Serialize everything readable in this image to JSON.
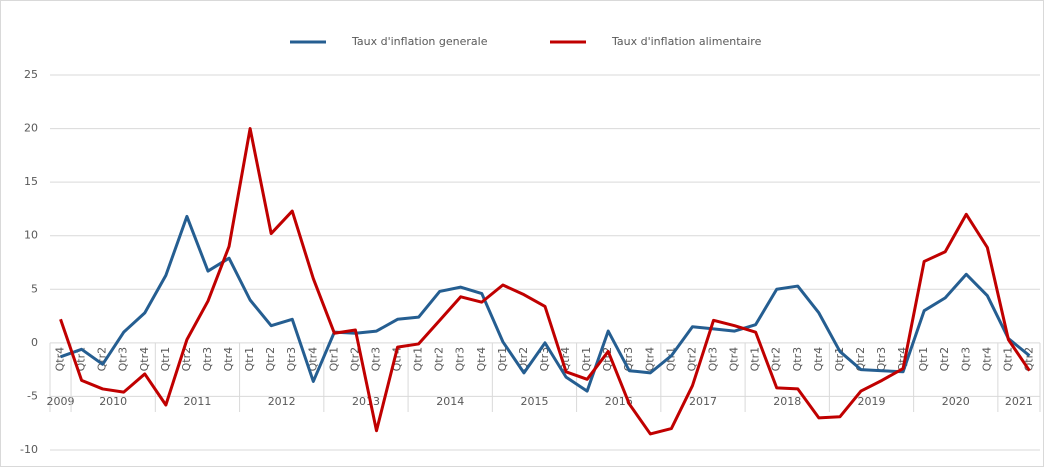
{
  "chart_data": {
    "type": "line",
    "category_groups": [
      {
        "name": "2009",
        "categories": [
          "Qtr4"
        ]
      },
      {
        "name": "2010",
        "categories": [
          "Qtr1",
          "Qtr2",
          "Qtr3",
          "Qtr4"
        ]
      },
      {
        "name": "2011",
        "categories": [
          "Qtr1",
          "Qtr2",
          "Qtr3",
          "Qtr4"
        ]
      },
      {
        "name": "2012",
        "categories": [
          "Qtr1",
          "Qtr2",
          "Qtr3",
          "Qtr4"
        ]
      },
      {
        "name": "2013",
        "categories": [
          "Qtr1",
          "Qtr2",
          "Qtr3",
          "Qtr4"
        ]
      },
      {
        "name": "2014",
        "categories": [
          "Qtr1",
          "Qtr2",
          "Qtr3",
          "Qtr4"
        ]
      },
      {
        "name": "2015",
        "categories": [
          "Qtr1",
          "Qtr2",
          "Qtr3",
          "Qtr4"
        ]
      },
      {
        "name": "2016",
        "categories": [
          "Qtr1",
          "Qtr2",
          "Qtr3",
          "Qtr4"
        ]
      },
      {
        "name": "2017",
        "categories": [
          "Qtr1",
          "Qtr2",
          "Qtr3",
          "Qtr4"
        ]
      },
      {
        "name": "2018",
        "categories": [
          "Qtr1",
          "Qtr2",
          "Qtr3",
          "Qtr4"
        ]
      },
      {
        "name": "2019",
        "categories": [
          "Qtr1",
          "Qtr2",
          "Qtr3",
          "Qtr4"
        ]
      },
      {
        "name": "2020",
        "categories": [
          "Qtr1",
          "Qtr2",
          "Qtr3",
          "Qtr4"
        ]
      },
      {
        "name": "2021",
        "categories": [
          "Qtr1",
          "Qtr2"
        ]
      }
    ],
    "series": [
      {
        "name": "Taux d'inflation generale",
        "color": "#255e91",
        "values": [
          -1.3,
          -0.6,
          -2.0,
          1.0,
          2.8,
          6.3,
          11.8,
          6.7,
          7.9,
          4.0,
          1.6,
          2.2,
          -3.6,
          1.0,
          0.9,
          1.1,
          2.2,
          2.4,
          4.8,
          5.2,
          4.6,
          0.1,
          -2.8,
          0.0,
          -3.2,
          -4.5,
          1.1,
          -2.6,
          -2.8,
          -1.2,
          1.5,
          1.3,
          1.1,
          1.7,
          5.0,
          5.3,
          2.8,
          -0.8,
          -2.5,
          -2.6,
          -2.7,
          3.0,
          4.2,
          6.4,
          4.4,
          0.4,
          -1.2
        ]
      },
      {
        "name": "Taux d'inflation alimentaire",
        "color": "#c00000",
        "values": [
          2.2,
          -3.5,
          -4.3,
          -4.6,
          -2.9,
          -5.8,
          0.3,
          3.9,
          9.0,
          20.0,
          10.2,
          12.3,
          6.0,
          0.9,
          1.2,
          -8.2,
          -0.4,
          -0.1,
          2.1,
          4.3,
          3.8,
          5.4,
          4.5,
          3.4,
          -2.7,
          -3.4,
          -0.8,
          -5.7,
          -8.5,
          -8.0,
          -4.0,
          2.1,
          1.6,
          1.0,
          -4.2,
          -4.3,
          -7.0,
          -6.9,
          -4.5,
          -3.5,
          -2.4,
          7.6,
          8.5,
          12.0,
          8.9,
          0.3,
          -2.6
        ]
      }
    ],
    "ylim": [
      -10,
      25
    ],
    "yticks": [
      -10,
      -5,
      0,
      5,
      10,
      15,
      20,
      25
    ],
    "grid": true,
    "legend": "top"
  }
}
